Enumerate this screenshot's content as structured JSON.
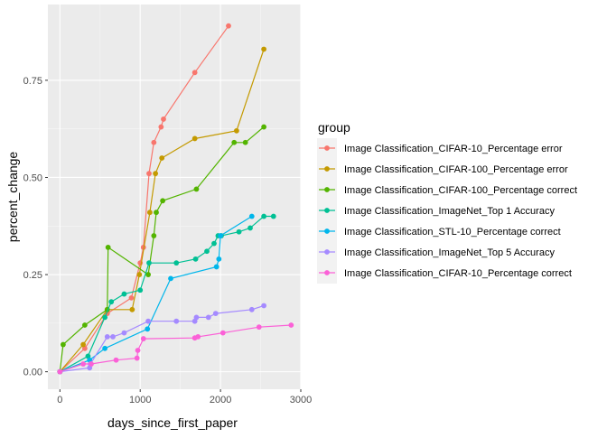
{
  "chart_data": {
    "type": "line",
    "xlabel": "days_since_first_paper",
    "ylabel": "percent_change",
    "xlim": [
      -150,
      3000
    ],
    "ylim": [
      -0.045,
      0.945
    ],
    "x_ticks": [
      0,
      1000,
      2000,
      3000
    ],
    "x_tick_labels": [
      "0",
      "1000",
      "2000",
      "3000"
    ],
    "y_ticks": [
      0.0,
      0.25,
      0.5,
      0.75
    ],
    "y_tick_labels": [
      "0.00",
      "0.25",
      "0.50",
      "0.75"
    ],
    "grid": true,
    "background": "#ebebeb",
    "legend": {
      "title": "group",
      "position": "right"
    },
    "series": [
      {
        "name": "Image Classification_CIFAR-10_Percentage error",
        "color": "#F8766D",
        "x": [
          0,
          310,
          590,
          890,
          1000,
          1040,
          1110,
          1170,
          1260,
          1290,
          1680,
          2100
        ],
        "y": [
          0,
          0.06,
          0.15,
          0.19,
          0.28,
          0.32,
          0.51,
          0.59,
          0.63,
          0.65,
          0.77,
          0.89
        ]
      },
      {
        "name": "Image Classification_CIFAR-100_Percentage error",
        "color": "#C49A00",
        "x": [
          0,
          290,
          590,
          900,
          990,
          1120,
          1190,
          1270,
          1680,
          2200,
          2540
        ],
        "y": [
          0,
          0.07,
          0.16,
          0.16,
          0.25,
          0.41,
          0.51,
          0.55,
          0.6,
          0.62,
          0.83
        ]
      },
      {
        "name": "Image Classification_CIFAR-100_Percentage correct",
        "color": "#53B400",
        "x": [
          0,
          40,
          310,
          590,
          600,
          1100,
          1170,
          1200,
          1280,
          1700,
          2170,
          2310,
          2540
        ],
        "y": [
          0,
          0.07,
          0.12,
          0.16,
          0.32,
          0.25,
          0.35,
          0.41,
          0.44,
          0.47,
          0.59,
          0.59,
          0.63
        ]
      },
      {
        "name": "Image Classification_ImageNet_Top 1 Accuracy",
        "color": "#00C094",
        "x": [
          0,
          350,
          560,
          640,
          800,
          1000,
          1110,
          1450,
          1690,
          1830,
          1920,
          1970,
          2010,
          2230,
          2370,
          2540,
          2660
        ],
        "y": [
          0,
          0.04,
          0.14,
          0.18,
          0.2,
          0.21,
          0.28,
          0.28,
          0.29,
          0.31,
          0.33,
          0.35,
          0.35,
          0.36,
          0.37,
          0.4,
          0.4
        ]
      },
      {
        "name": "Image Classification_STL-10_Percentage correct",
        "color": "#00B6EB",
        "x": [
          0,
          370,
          560,
          1090,
          1380,
          1950,
          1980,
          2000,
          2390
        ],
        "y": [
          0,
          0.03,
          0.06,
          0.11,
          0.24,
          0.27,
          0.29,
          0.35,
          0.4
        ]
      },
      {
        "name": "Image Classification_ImageNet_Top 5 Accuracy",
        "color": "#A58AFF",
        "x": [
          0,
          370,
          380,
          590,
          660,
          800,
          1100,
          1450,
          1680,
          1700,
          1850,
          1940,
          2390,
          2540
        ],
        "y": [
          0,
          0.01,
          0.02,
          0.09,
          0.09,
          0.1,
          0.13,
          0.13,
          0.13,
          0.14,
          0.14,
          0.15,
          0.16,
          0.17
        ]
      },
      {
        "name": "Image Classification_CIFAR-10_Percentage correct",
        "color": "#FB61D7",
        "x": [
          0,
          290,
          390,
          700,
          960,
          970,
          1040,
          1680,
          1720,
          2030,
          2480,
          2880
        ],
        "y": [
          0,
          0.02,
          0.02,
          0.03,
          0.035,
          0.055,
          0.085,
          0.087,
          0.09,
          0.1,
          0.115,
          0.12
        ]
      }
    ]
  }
}
